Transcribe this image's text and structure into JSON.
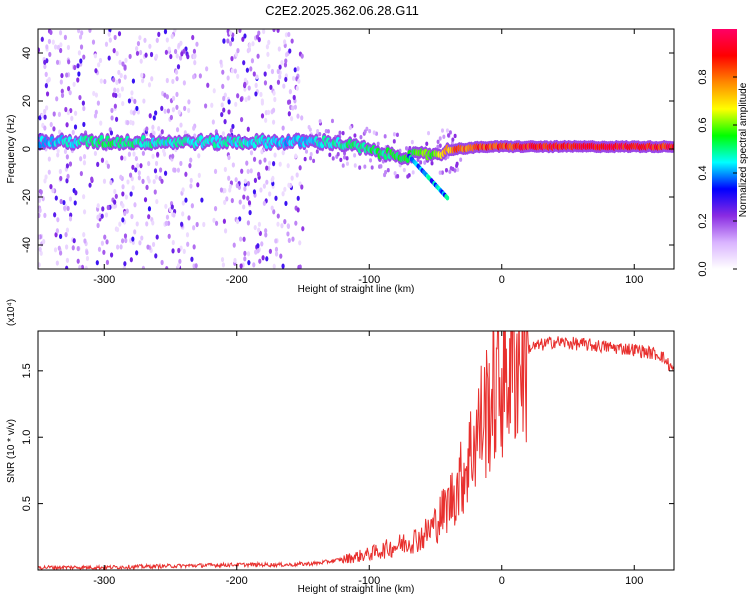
{
  "title": "C2E2.2025.362.06.28.G11",
  "chart_data": [
    {
      "type": "heatmap",
      "title": "C2E2.2025.362.06.28.G11",
      "xlabel": "Height of straight line (km)",
      "ylabel": "Frequency (Hz)",
      "xlim": [
        -350,
        130
      ],
      "ylim": [
        -50,
        50
      ],
      "xticks": [
        -300,
        -200,
        -100,
        0,
        100
      ],
      "xtick_labels": [
        "-300",
        "-200",
        "-100",
        "0",
        "100"
      ],
      "yticks": [
        -40,
        -20,
        0,
        20,
        40
      ],
      "ytick_labels": [
        "-40",
        "-20",
        "0",
        "20",
        "40"
      ],
      "colorbar": {
        "label": "Normalized spectral amplitude",
        "range": [
          0,
          1
        ],
        "ticks": [
          0.0,
          0.2,
          0.4,
          0.6,
          0.8
        ],
        "tick_labels": [
          "0.0",
          "0.2",
          "0.4",
          "0.6",
          "0.8"
        ],
        "colormap": [
          "#ffffff",
          "#d9b3ff",
          "#8a2be2",
          "#0000ff",
          "#00ffff",
          "#00ff00",
          "#ffff00",
          "#ff8800",
          "#ff0000",
          "#ff0066"
        ]
      },
      "signal_track": [
        {
          "x": -340,
          "f": 3,
          "amp": 0.45
        },
        {
          "x": -300,
          "f": 3,
          "amp": 0.55
        },
        {
          "x": -250,
          "f": 3,
          "amp": 0.5
        },
        {
          "x": -200,
          "f": 3,
          "amp": 0.5
        },
        {
          "x": -160,
          "f": 3,
          "amp": 0.45
        },
        {
          "x": -130,
          "f": 3,
          "amp": 0.5
        },
        {
          "x": -110,
          "f": 1,
          "amp": 0.55
        },
        {
          "x": -90,
          "f": -2,
          "amp": 0.55
        },
        {
          "x": -70,
          "f": -3,
          "amp": 0.6
        },
        {
          "x": -50,
          "f": -2,
          "amp": 0.65
        },
        {
          "x": -35,
          "f": 0,
          "amp": 0.85
        },
        {
          "x": -10,
          "f": 1,
          "amp": 0.9
        },
        {
          "x": 20,
          "f": 1,
          "amp": 0.95
        },
        {
          "x": 60,
          "f": 1,
          "amp": 0.97
        },
        {
          "x": 100,
          "f": 1,
          "amp": 0.95
        },
        {
          "x": 130,
          "f": 1,
          "amp": 0.95
        }
      ],
      "noise_regions": [
        [
          -350,
          -150
        ]
      ]
    },
    {
      "type": "line",
      "xlabel": "Height of straight line (km)",
      "ylabel": "SNR (10 * v/v)",
      "yscale_label": "(x10⁴)",
      "xlim": [
        -350,
        130
      ],
      "ylim": [
        0,
        1.8
      ],
      "xticks": [
        -300,
        -200,
        -100,
        0,
        100
      ],
      "xtick_labels": [
        "-300",
        "-200",
        "-100",
        "0",
        "100"
      ],
      "yticks": [
        0.5,
        1.0,
        1.5
      ],
      "ytick_labels": [
        "0.5",
        "1.0",
        "1.5"
      ],
      "series": [
        {
          "name": "SNR",
          "color": "#e8302e",
          "x": [
            -350,
            -300,
            -250,
            -200,
            -160,
            -140,
            -120,
            -100,
            -80,
            -60,
            -50,
            -40,
            -30,
            -20,
            -10,
            0,
            10,
            20,
            40,
            60,
            80,
            100,
            120,
            130
          ],
          "y": [
            0.02,
            0.02,
            0.03,
            0.04,
            0.04,
            0.05,
            0.08,
            0.12,
            0.18,
            0.25,
            0.35,
            0.5,
            0.7,
            1.0,
            1.25,
            1.45,
            1.6,
            1.67,
            1.72,
            1.7,
            1.68,
            1.66,
            1.62,
            1.5
          ]
        }
      ]
    }
  ]
}
